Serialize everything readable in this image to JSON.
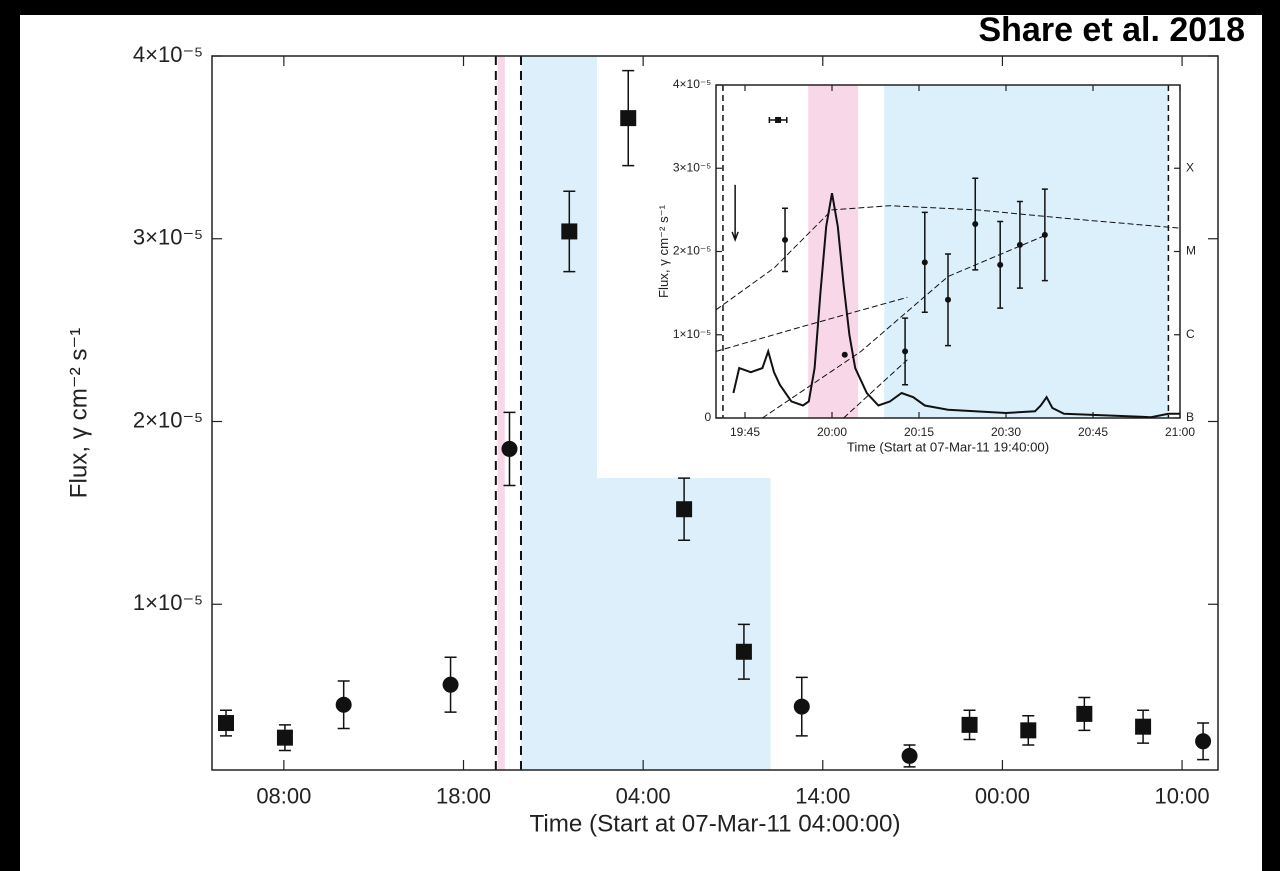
{
  "credit": "Share et al. 2018",
  "chart_data": [
    {
      "type": "scatter",
      "xlabel": "Time (Start at 07-Mar-11 04:00:00)",
      "ylabel": "Flux, γ cm⁻² s⁻¹",
      "xlim": [
        0,
        56
      ],
      "ylim": [
        9.3e-07,
        4e-05
      ],
      "xticks": [
        {
          "value": 4,
          "label": "08:00"
        },
        {
          "value": 14,
          "label": "18:00"
        },
        {
          "value": 24,
          "label": "04:00"
        },
        {
          "value": 34,
          "label": "14:00"
        },
        {
          "value": 44,
          "label": "00:00"
        },
        {
          "value": 54,
          "label": "10:00"
        }
      ],
      "yticks": [
        {
          "value": 1e-05,
          "label": "1×10⁻⁵"
        },
        {
          "value": 2e-05,
          "label": "2×10⁻⁵"
        },
        {
          "value": 3e-05,
          "label": "3×10⁻⁵"
        },
        {
          "value": 4e-05,
          "label": "4×10⁻⁵"
        }
      ],
      "shaded_regions": [
        {
          "x": [
            15.9,
            16.3
          ],
          "color": "#f8d8e8"
        },
        {
          "x": [
            17.2,
            31.1
          ],
          "color": "#dceffa"
        }
      ],
      "vlines": [
        15.8,
        17.2
      ],
      "x": [
        0.78,
        4.06,
        7.33,
        13.28,
        16.56,
        19.89,
        23.17,
        26.28,
        29.61,
        32.83,
        38.83,
        42.17,
        45.44,
        48.56,
        51.83,
        55.17
      ],
      "values": [
        3.5e-06,
        2.7e-06,
        4.5e-06,
        5.6e-06,
        1.85e-05,
        3.04e-05,
        3.66e-05,
        1.52e-05,
        7.4e-06,
        4.4e-06,
        1.7e-06,
        3.4e-06,
        3.1e-06,
        4e-06,
        3.3e-06,
        2.5e-06
      ],
      "errors": [
        7e-07,
        7e-07,
        1.3e-06,
        1.5e-06,
        2e-06,
        2.2e-06,
        2.6e-06,
        1.7e-06,
        1.5e-06,
        1.6e-06,
        6e-07,
        8e-07,
        8e-07,
        9e-07,
        9e-07,
        1e-06
      ],
      "markers": [
        "square",
        "square",
        "circle",
        "circle",
        "circle",
        "square",
        "square",
        "square",
        "square",
        "circle",
        "circle",
        "square",
        "square",
        "square",
        "square",
        "circle"
      ],
      "color": "#111111"
    },
    {
      "type": "scatter",
      "xlabel": "Time (Start at 07-Mar-11 19:40:00)",
      "ylabel": "Flux, γ cm⁻² s⁻¹",
      "xlim": [
        0,
        80
      ],
      "ylim": [
        0,
        4e-05
      ],
      "y2lim": [
        0,
        4
      ],
      "xticks": [
        {
          "value": 5,
          "label": "19:45"
        },
        {
          "value": 20,
          "label": "20:00"
        },
        {
          "value": 35,
          "label": "20:15"
        },
        {
          "value": 50,
          "label": "20:30"
        },
        {
          "value": 65,
          "label": "20:45"
        },
        {
          "value": 80,
          "label": "21:00"
        }
      ],
      "yticks": [
        0,
        {
          "value": 1e-05,
          "label": "1×10⁻⁵"
        },
        {
          "value": 2e-05,
          "label": "2×10⁻⁵"
        },
        {
          "value": 3e-05,
          "label": "3×10⁻⁵"
        },
        {
          "value": 4e-05,
          "label": "4×10⁻⁵"
        }
      ],
      "y2ticks": [
        {
          "value": 0,
          "label": "B"
        },
        {
          "value": 1,
          "label": "C"
        },
        {
          "value": 2,
          "label": "M"
        },
        {
          "value": 3,
          "label": "X"
        }
      ],
      "shaded_regions": [
        {
          "x": [
            15.9,
            24.5
          ],
          "color": "#f8d8e8"
        },
        {
          "x": [
            29,
            78
          ],
          "color": "#dcf0fb"
        }
      ],
      "vlines": [
        1.2,
        78
      ],
      "x": [
        10.7,
        11.9,
        22.2,
        32.6,
        36.0,
        40.0,
        44.7,
        49.0,
        52.4,
        56.7
      ],
      "values": [
        3.58e-05,
        2.14e-05,
        7.6e-06,
        8e-06,
        1.87e-05,
        1.42e-05,
        2.33e-05,
        1.84e-05,
        2.08e-05,
        2.2e-05
      ],
      "errors": [
        null,
        3.8e-06,
        null,
        4e-06,
        6e-06,
        5.5e-06,
        5.5e-06,
        5.2e-06,
        5.2e-06,
        5.5e-06
      ],
      "xerrors": [
        1.5,
        null,
        null,
        null,
        null,
        null,
        null,
        null,
        null,
        null
      ],
      "markers": [
        "square",
        "circle",
        "circle",
        "circle",
        "circle",
        "circle",
        "circle",
        "circle",
        "circle",
        "circle"
      ],
      "upper_limits": {
        "x": [
          3.3
        ],
        "values": [
          2.8e-05
        ]
      },
      "lines": [
        {
          "style": "solid",
          "axis": "y2",
          "x": [
            3,
            4,
            6,
            8,
            9,
            10,
            11,
            13,
            15,
            16,
            17,
            18,
            19,
            20,
            21,
            22,
            23,
            24,
            26,
            28,
            30,
            32,
            34,
            36,
            40,
            50,
            55,
            56,
            57,
            58,
            60,
            75,
            78,
            80
          ],
          "values": [
            0.3,
            0.6,
            0.55,
            0.6,
            0.8,
            0.55,
            0.4,
            0.2,
            0.15,
            0.2,
            0.6,
            1.5,
            2.3,
            2.7,
            2.3,
            1.6,
            1.0,
            0.6,
            0.3,
            0.15,
            0.2,
            0.3,
            0.25,
            0.15,
            0.1,
            0.06,
            0.08,
            0.15,
            0.25,
            0.12,
            0.05,
            0.01,
            0.05,
            0.05
          ]
        },
        {
          "style": "dashed",
          "axis": "y2",
          "x": [
            0,
            10,
            20,
            30,
            45,
            60,
            80
          ],
          "values": [
            1.3,
            1.8,
            2.5,
            2.55,
            2.5,
            2.4,
            2.28
          ]
        },
        {
          "style": "dashed",
          "axis": "y2",
          "x": [
            0,
            15,
            33
          ],
          "values": [
            0.8,
            1.1,
            1.45
          ]
        },
        {
          "style": "dashed",
          "axis": "y2",
          "x": [
            8,
            25,
            40,
            57
          ],
          "values": [
            0,
            0.8,
            1.7,
            2.2
          ]
        },
        {
          "style": "dashed",
          "axis": "y2",
          "x": [
            22,
            33
          ],
          "values": [
            0,
            0.7
          ]
        }
      ],
      "color": "#111111"
    }
  ]
}
